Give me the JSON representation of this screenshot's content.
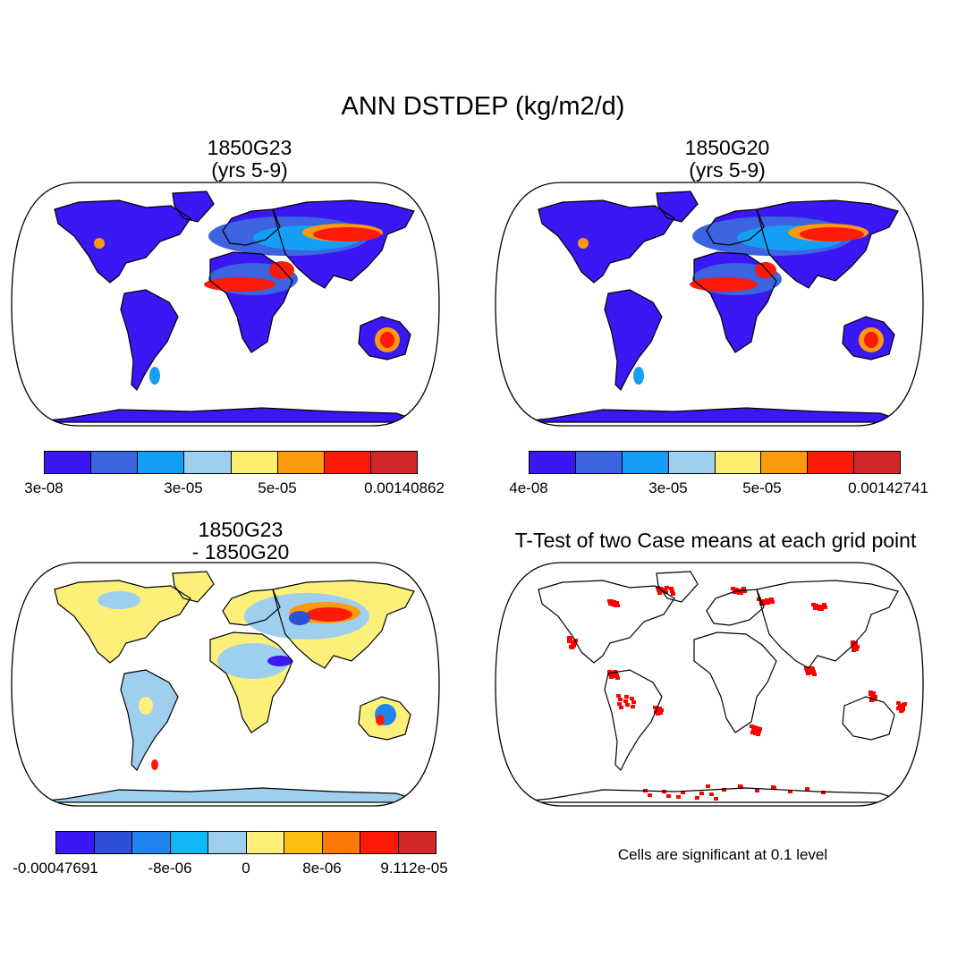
{
  "figure": {
    "title": "ANN DSTDEP (kg/m2/d)"
  },
  "panels": [
    {
      "id": "case1",
      "title_line1": "1850G23",
      "title_line2": "(yrs 5-9)",
      "colorbar": {
        "colors": [
          "#3a17f4",
          "#3c63e0",
          "#159ef5",
          "#9fcfee",
          "#fcee6e",
          "#fb9a0c",
          "#fb1b08",
          "#d1272b"
        ],
        "labels": [
          "3e-08",
          "3e-05",
          "5e-05",
          "0.00140862"
        ]
      }
    },
    {
      "id": "case2",
      "title_line1": "1850G20",
      "title_line2": "(yrs 5-9)",
      "colorbar": {
        "colors": [
          "#3a17f4",
          "#3c63e0",
          "#159ef5",
          "#9fcfee",
          "#fcee6e",
          "#fb9a0c",
          "#fb1b08",
          "#d1272b"
        ],
        "labels": [
          "4e-08",
          "3e-05",
          "5e-05",
          "0.00142741"
        ]
      }
    },
    {
      "id": "difference",
      "title_line1": "1850G23",
      "title_line2": "- 1850G20",
      "colorbar": {
        "colors": [
          "#3a17f4",
          "#2f4fd8",
          "#1f86f0",
          "#12b8f5",
          "#9fcfee",
          "#fcf07a",
          "#fbc00f",
          "#fb7a08",
          "#fb1b08",
          "#d1272b"
        ],
        "labels": [
          "-0.00047691",
          "-8e-06",
          "0",
          "8e-06",
          "9.112e-05"
        ]
      }
    },
    {
      "id": "ttest",
      "title_line1": "T-Test of two Case means at each grid point",
      "note": "Cells are significant at 0.1 level",
      "significant_color": "#ff0000"
    }
  ]
}
